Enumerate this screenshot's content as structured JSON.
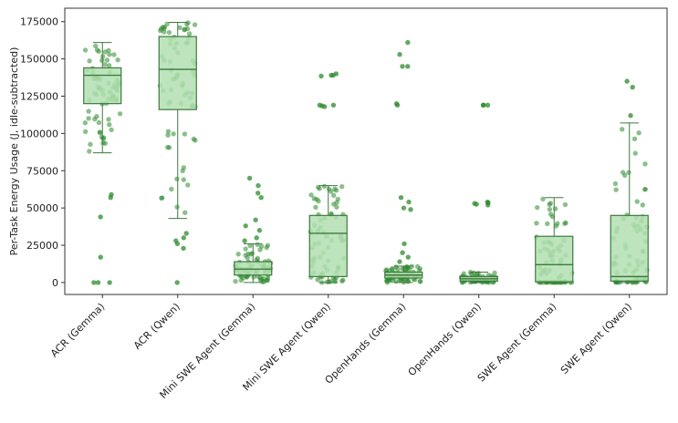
{
  "chart_data": {
    "type": "box",
    "title": "",
    "xlabel": "",
    "ylabel": "Per-Task Energy Usage (J, idle-subtracted)",
    "ylim": [
      -8000,
      184000
    ],
    "yticks": [
      0,
      25000,
      50000,
      75000,
      100000,
      125000,
      150000,
      175000
    ],
    "ytick_labels": [
      "0",
      "25000",
      "50000",
      "75000",
      "100000",
      "125000",
      "150000",
      "175000"
    ],
    "categories": [
      "ACR (Gemma)",
      "ACR (Qwen)",
      "Mini SWE Agent (Gemma)",
      "Mini SWE Agent (Qwen)",
      "OpenHands (Gemma)",
      "OpenHands (Qwen)",
      "SWE Agent (Gemma)",
      "SWE Agent (Qwen)"
    ],
    "box_stats": [
      {
        "whislo": 87000,
        "q1": 120000,
        "median": 139000,
        "q3": 144000,
        "whishi": 161000
      },
      {
        "whislo": 43000,
        "q1": 116000,
        "median": 143000,
        "q3": 165000,
        "whishi": 174500
      },
      {
        "whislo": 0,
        "q1": 5000,
        "median": 9000,
        "q3": 14000,
        "whishi": 26000
      },
      {
        "whislo": 0,
        "q1": 4000,
        "median": 33000,
        "q3": 45000,
        "whishi": 65000
      },
      {
        "whislo": 0,
        "q1": 3000,
        "median": 5000,
        "q3": 7000,
        "whishi": 11000
      },
      {
        "whislo": 0,
        "q1": 1000,
        "median": 2500,
        "q3": 4000,
        "whishi": 7000
      },
      {
        "whislo": 0,
        "q1": 500,
        "median": 12000,
        "q3": 31000,
        "whishi": 57000
      },
      {
        "whislo": 0,
        "q1": 1000,
        "median": 4000,
        "q3": 45000,
        "whishi": 107000
      }
    ],
    "outliers": [
      [
        0,
        0,
        0,
        17000,
        44000,
        57000,
        59000
      ],
      [
        0,
        23000,
        26000,
        28000,
        30000,
        33000
      ],
      [
        28000,
        30000,
        35000,
        38000,
        42000,
        57000,
        60000,
        65000,
        70000
      ],
      [
        118000,
        118500,
        119000,
        119000,
        138500,
        139000,
        139000,
        140000
      ],
      [
        14000,
        17000,
        20000,
        26000,
        49000,
        50000,
        54000,
        57000,
        119000,
        120000,
        145000,
        145000,
        153000,
        161000
      ],
      [
        52000,
        52500,
        53000,
        53500,
        54000,
        119000,
        119000,
        119000
      ],
      [],
      [
        112000,
        131000,
        135000
      ]
    ],
    "box_color": "#b2dfb0",
    "edge_color": "#3d7a3d",
    "point_color": "#2e8b2e"
  }
}
